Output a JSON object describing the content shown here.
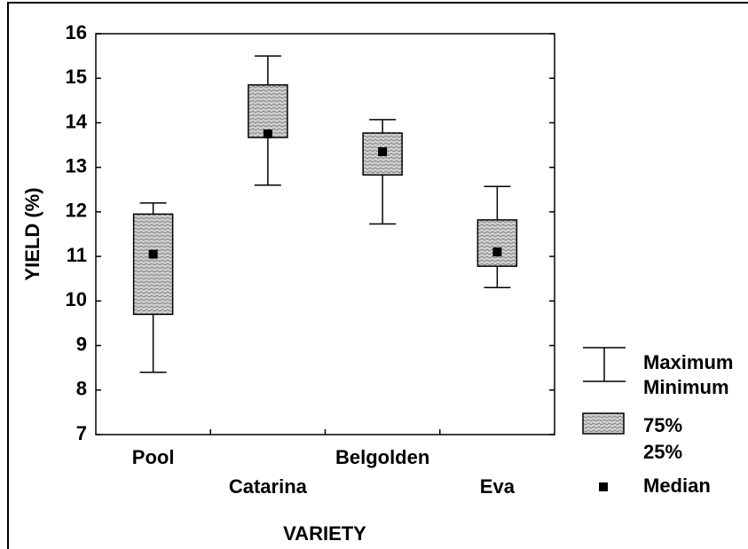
{
  "chart_data": {
    "type": "box",
    "x_label": "VARIETY",
    "y_label": "YIELD (%)",
    "categories": [
      "Pool",
      "Catarina",
      "Belgolden",
      "Eva"
    ],
    "min": [
      8.4,
      12.6,
      11.73,
      10.3
    ],
    "q1": [
      9.7,
      13.67,
      12.83,
      10.78
    ],
    "median": [
      11.05,
      13.75,
      13.35,
      11.1
    ],
    "q3": [
      11.95,
      14.85,
      13.77,
      11.82
    ],
    "max": [
      12.2,
      15.5,
      14.07,
      12.57
    ],
    "ylim": [
      7,
      16
    ],
    "yticks": [
      7,
      8,
      9,
      10,
      11,
      12,
      13,
      14,
      15,
      16
    ],
    "legend": [
      "Maximum",
      "Minimum",
      "75%",
      "25%",
      "Median"
    ],
    "box_color": "#c8c8c8"
  }
}
